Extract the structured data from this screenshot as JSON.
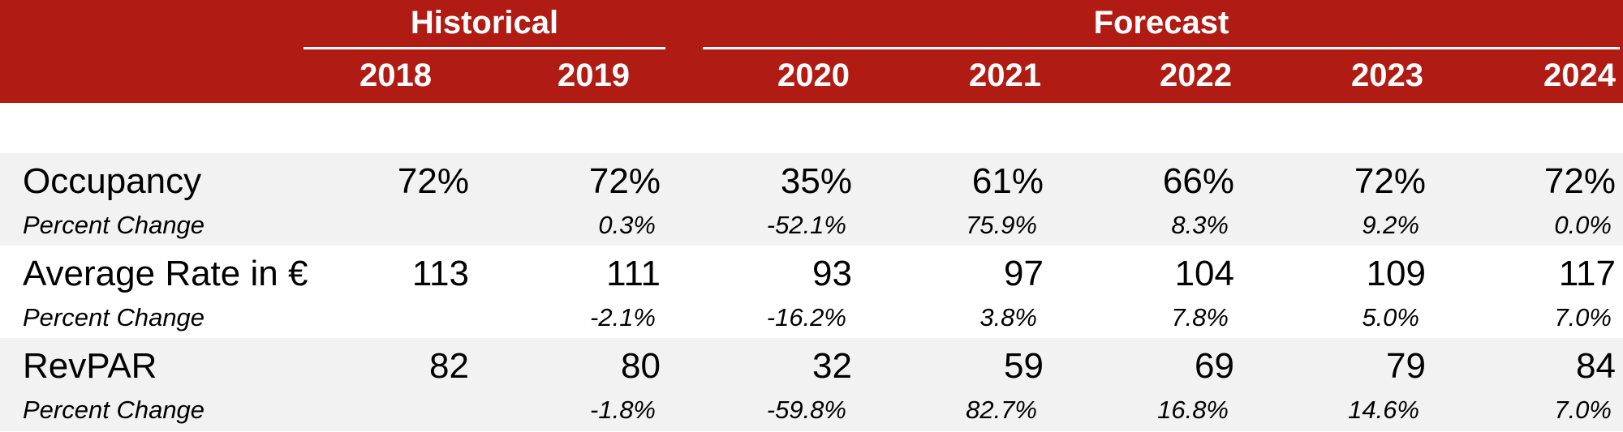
{
  "header": {
    "groups": [
      "Historical",
      "Forecast"
    ],
    "years": [
      "2018",
      "2019",
      "2020",
      "2021",
      "2022",
      "2023",
      "2024"
    ]
  },
  "rows": [
    {
      "label": "Occupancy",
      "values": [
        "72%",
        "72%",
        "35%",
        "61%",
        "66%",
        "72%",
        "72%"
      ],
      "change_label": "Percent Change",
      "changes": [
        "",
        "0.3%",
        "-52.1%",
        "75.9%",
        "8.3%",
        "9.2%",
        "0.0%"
      ]
    },
    {
      "label": "Average Rate in €",
      "values": [
        "113",
        "111",
        "93",
        "97",
        "104",
        "109",
        "117"
      ],
      "change_label": "Percent Change",
      "changes": [
        "",
        "-2.1%",
        "-16.2%",
        "3.8%",
        "7.8%",
        "5.0%",
        "7.0%"
      ]
    },
    {
      "label": "RevPAR",
      "values": [
        "82",
        "80",
        "32",
        "59",
        "69",
        "79",
        "84"
      ],
      "change_label": "Percent Change",
      "changes": [
        "",
        "-1.8%",
        "-59.8%",
        "82.7%",
        "16.8%",
        "14.6%",
        "7.0%"
      ]
    }
  ],
  "colors": {
    "header_background": "#b01c14",
    "header_text": "#ffffff",
    "row_shade": "#f2f2f2"
  }
}
